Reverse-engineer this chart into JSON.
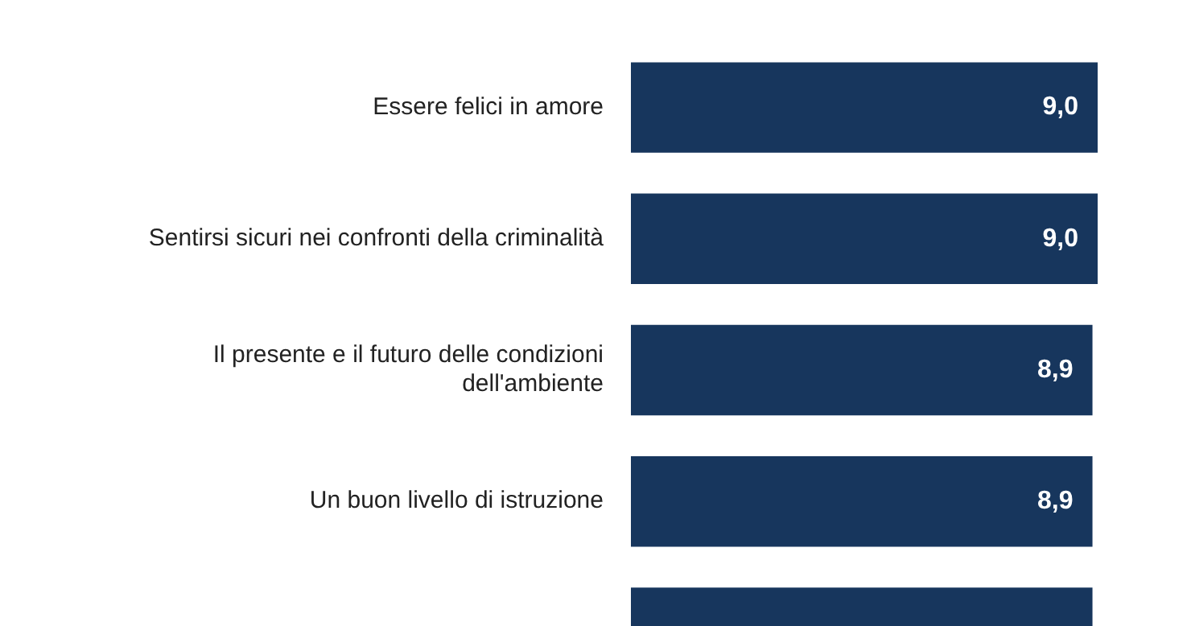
{
  "chart_data": {
    "type": "bar",
    "orientation": "horizontal",
    "categories": [
      "Essere felici in amore",
      "Sentirsi sicuri nei confronti della criminalità",
      "Il presente e il futuro delle condizioni dell'ambiente",
      "Un buon livello di istruzione",
      null
    ],
    "values": [
      9.0,
      9.0,
      8.9,
      8.9,
      8.9
    ],
    "value_labels": [
      "9,0",
      "9,0",
      "8,9",
      "8,9",
      null
    ],
    "color": "#17365d",
    "grid": false,
    "legend": false,
    "tick_labels": "y"
  }
}
